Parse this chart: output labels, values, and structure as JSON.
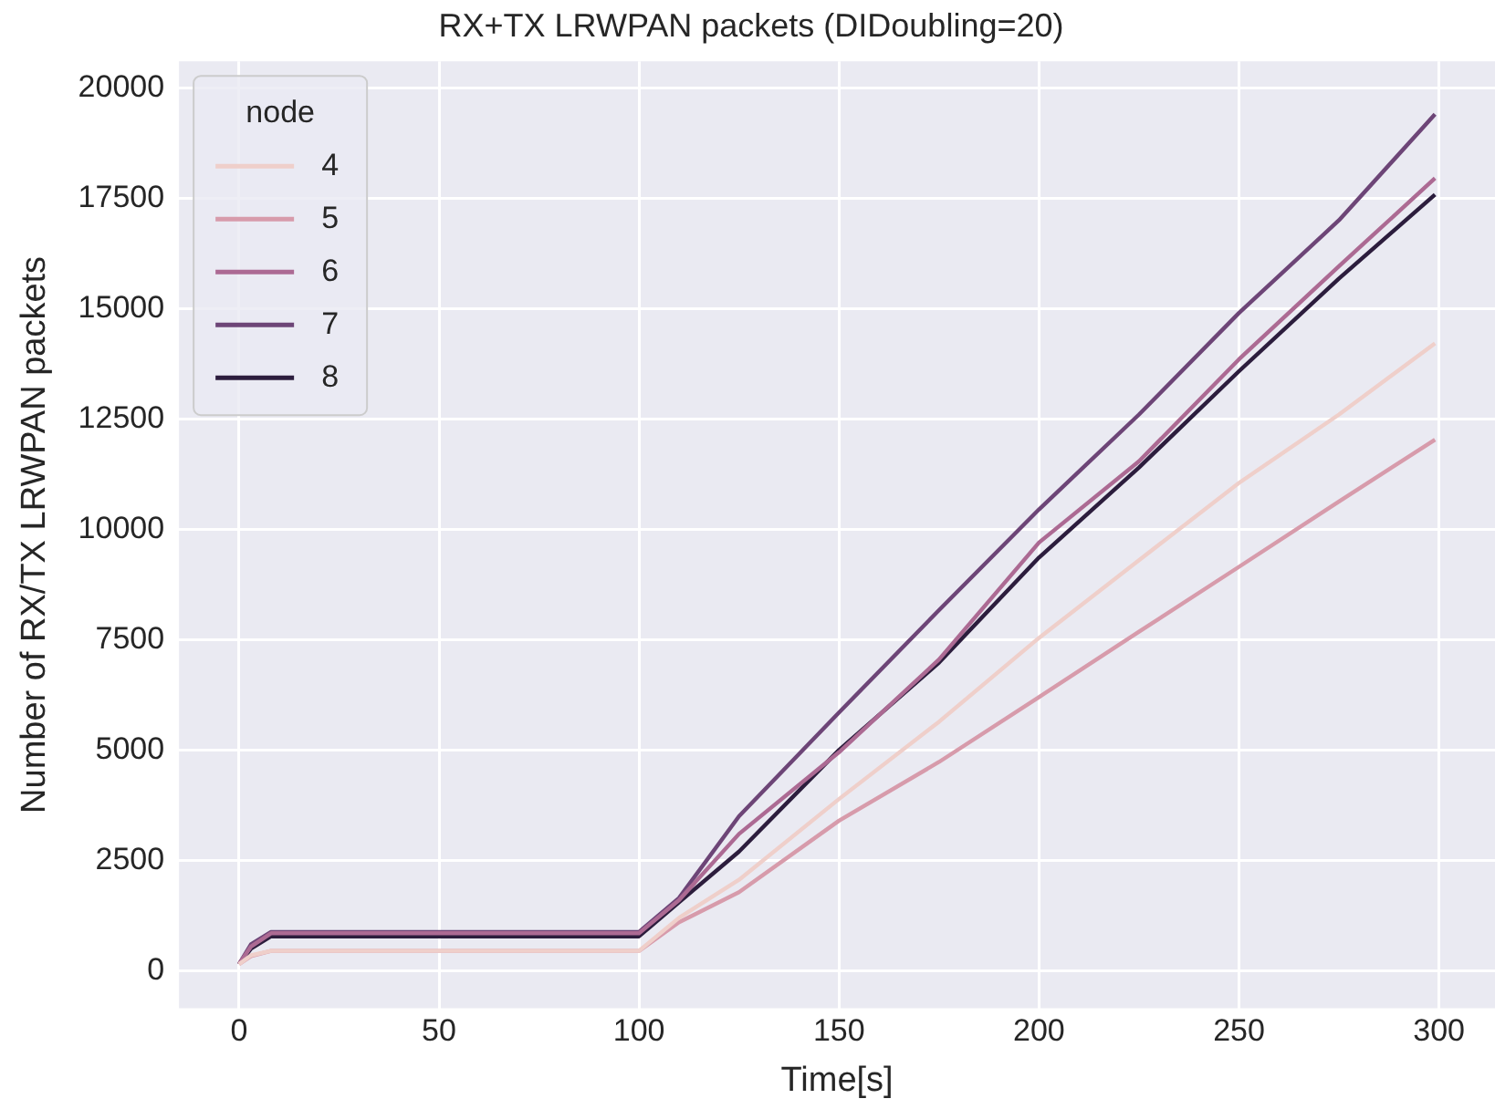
{
  "chart_data": {
    "type": "line",
    "title": "RX+TX LRWPAN packets (DIDoubling=20)",
    "xlabel": "Time[s]",
    "ylabel": "Number of RX/TX LRWPAN packets",
    "legend_title": "node",
    "legend": "top left",
    "grid": true,
    "x": [
      0,
      3,
      8,
      100,
      110,
      125,
      150,
      175,
      200,
      225,
      250,
      275,
      299
    ],
    "xlim": [
      -15,
      314
    ],
    "xticks": [
      0,
      50,
      100,
      150,
      200,
      250,
      300
    ],
    "ylim": [
      -850,
      20600
    ],
    "yticks": [
      0,
      2500,
      5000,
      7500,
      10000,
      12500,
      15000,
      17500,
      20000
    ],
    "series": [
      {
        "name": "4",
        "color": "#efcfca",
        "values": [
          150,
          350,
          450,
          450,
          1200,
          2060,
          3890,
          5640,
          7540,
          9300,
          11050,
          12600,
          14210
        ]
      },
      {
        "name": "5",
        "color": "#d79bab",
        "values": [
          150,
          330,
          450,
          450,
          1100,
          1780,
          3400,
          4730,
          6200,
          7680,
          9150,
          10630,
          12030
        ]
      },
      {
        "name": "6",
        "color": "#ac6a93",
        "values": [
          150,
          550,
          850,
          850,
          1600,
          3100,
          4950,
          7050,
          9700,
          11540,
          13850,
          15960,
          17950
        ]
      },
      {
        "name": "7",
        "color": "#6d4577",
        "values": [
          150,
          600,
          880,
          880,
          1650,
          3500,
          5850,
          8170,
          10450,
          12600,
          14900,
          17000,
          19400
        ]
      },
      {
        "name": "8",
        "color": "#2c1d3d",
        "values": [
          150,
          500,
          780,
          780,
          1550,
          2700,
          5000,
          6980,
          9360,
          11400,
          13580,
          15680,
          17580
        ]
      }
    ]
  }
}
